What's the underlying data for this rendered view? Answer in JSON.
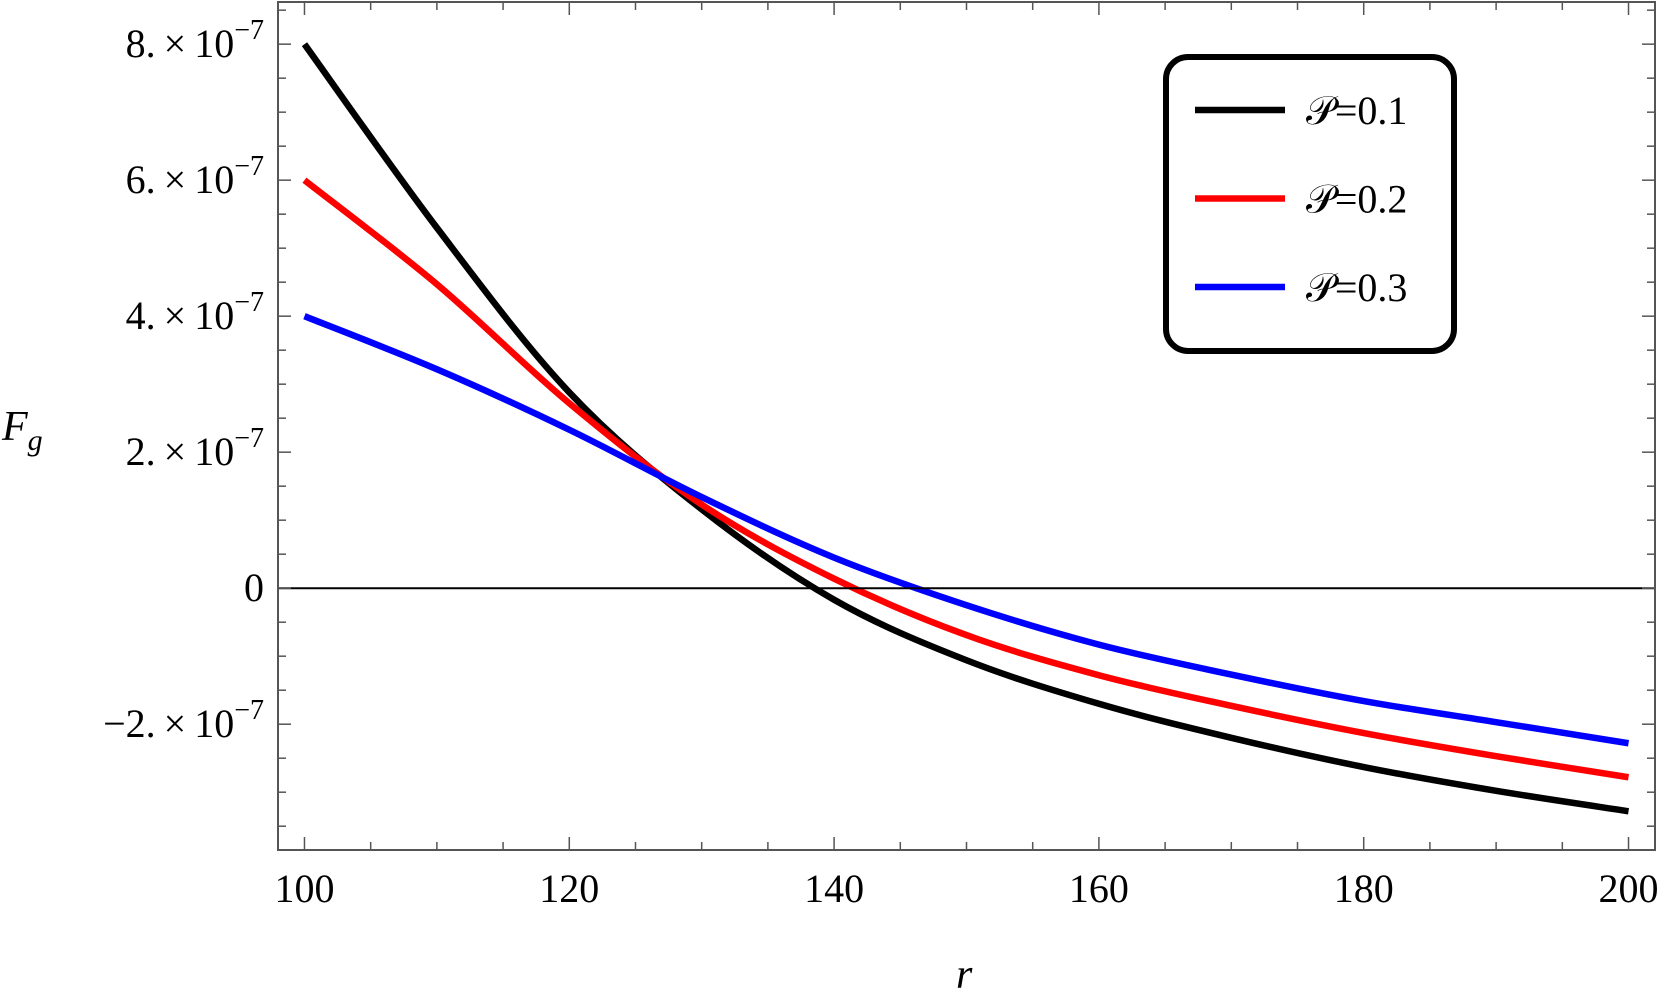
{
  "chart_data": {
    "type": "line",
    "title": "",
    "xlabel": "r",
    "ylabel": "F_g",
    "xlim": [
      98,
      202
    ],
    "ylim": [
      -3.85e-07,
      8.62e-07
    ],
    "x_ticks": [
      100,
      120,
      140,
      160,
      180,
      200
    ],
    "x_tick_labels": [
      "100",
      "120",
      "140",
      "160",
      "180",
      "200"
    ],
    "y_ticks": [
      -2e-07,
      0,
      2e-07,
      4e-07,
      6e-07,
      8e-07
    ],
    "y_tick_labels": [
      {
        "mantissa": "−2.",
        "exp": "−7"
      },
      {
        "mantissa": "0",
        "exp": ""
      },
      {
        "mantissa": "2.",
        "exp": "−7"
      },
      {
        "mantissa": "4.",
        "exp": "−7"
      },
      {
        "mantissa": "6.",
        "exp": "−7"
      },
      {
        "mantissa": "8.",
        "exp": "−7"
      }
    ],
    "grid": false,
    "zero_line": true,
    "legend_position": "top-right",
    "x": [
      100,
      110,
      120,
      130,
      140,
      150,
      160,
      170,
      180,
      190,
      200
    ],
    "series": [
      {
        "name": "𝒫=0.1",
        "color": "#000000",
        "values": [
          8e-07,
          5.3e-07,
          2.88e-07,
          1.16e-07,
          -1.7e-08,
          -1.06e-07,
          -1.7e-07,
          -2.2e-07,
          -2.63e-07,
          -2.98e-07,
          -3.28e-07
        ]
      },
      {
        "name": "𝒫=0.2",
        "color": "#ff0000",
        "values": [
          6e-07,
          4.47e-07,
          2.72e-07,
          1.23e-07,
          1.4e-08,
          -6.9e-08,
          -1.28e-07,
          -1.73e-07,
          -2.13e-07,
          -2.47e-07,
          -2.78e-07
        ]
      },
      {
        "name": "𝒫=0.3",
        "color": "#0000ff",
        "values": [
          4e-07,
          3.22e-07,
          2.33e-07,
          1.34e-07,
          4.5e-08,
          -2.5e-08,
          -8.3e-08,
          -1.27e-07,
          -1.66e-07,
          -1.97e-07,
          -2.28e-07
        ]
      }
    ]
  }
}
